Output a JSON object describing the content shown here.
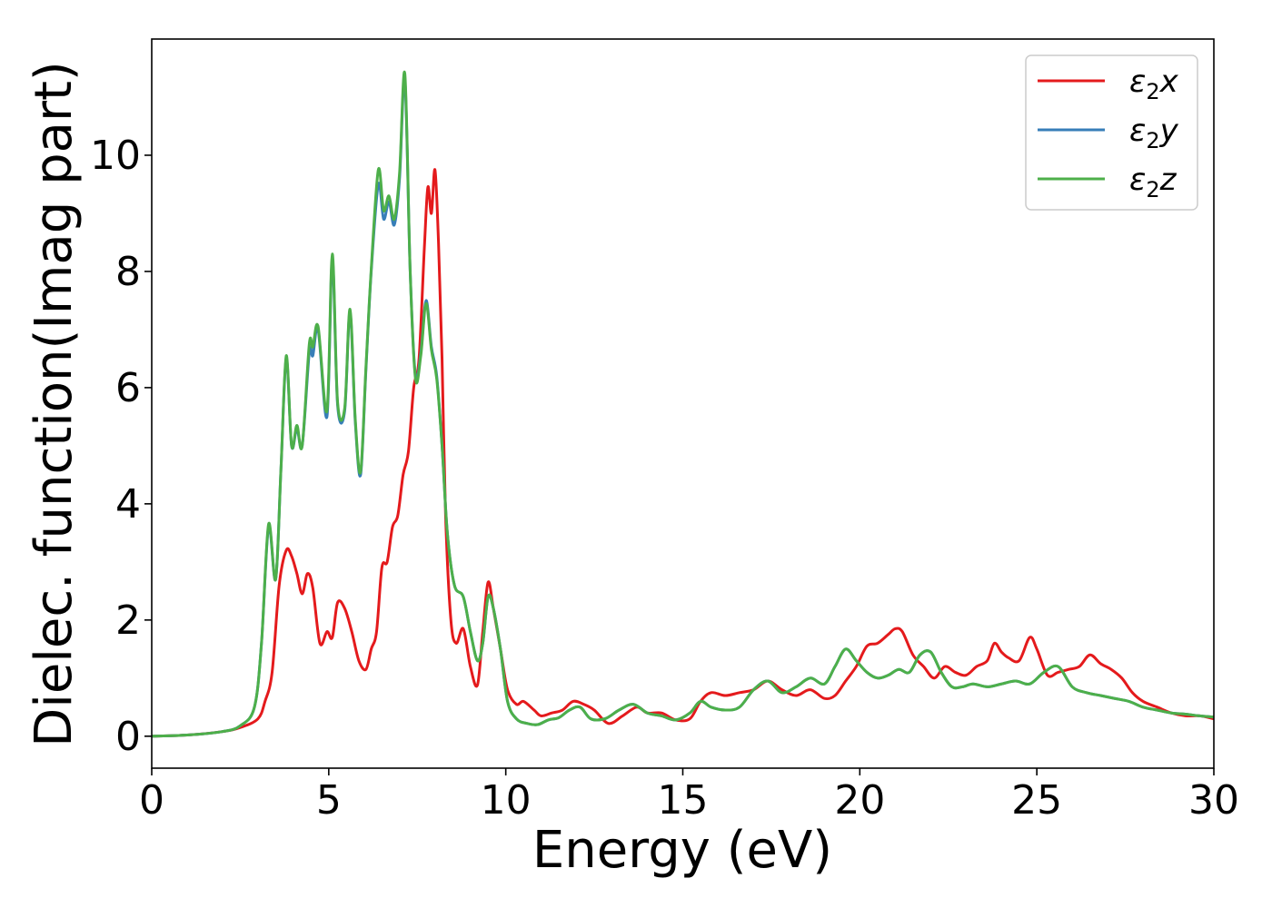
{
  "chart_data": {
    "type": "line",
    "title": "",
    "xlabel": "Energy (eV)",
    "ylabel": "Dielec. function(Imag part)",
    "xlim": [
      0,
      30
    ],
    "ylim": [
      -0.55,
      12.0
    ],
    "xticks": [
      0,
      5,
      10,
      15,
      20,
      25,
      30
    ],
    "yticks": [
      0,
      2,
      4,
      6,
      8,
      10
    ],
    "grid": false,
    "legend_position": "top-right",
    "series": [
      {
        "name": "ε₂x",
        "legend_base": "ε",
        "legend_sub": "2",
        "legend_tail": "x",
        "color": "#e41a1c",
        "x": [
          0,
          1,
          2,
          2.5,
          3,
          3.2,
          3.4,
          3.6,
          3.8,
          3.95,
          4.1,
          4.25,
          4.4,
          4.55,
          4.75,
          4.95,
          5.1,
          5.25,
          5.45,
          5.65,
          5.85,
          6.05,
          6.2,
          6.35,
          6.5,
          6.65,
          6.8,
          6.95,
          7.1,
          7.25,
          7.4,
          7.55,
          7.7,
          7.8,
          7.9,
          8.0,
          8.1,
          8.2,
          8.3,
          8.45,
          8.6,
          8.8,
          9.0,
          9.2,
          9.35,
          9.5,
          9.65,
          9.85,
          10.05,
          10.3,
          10.5,
          10.8,
          11.0,
          11.3,
          11.6,
          11.9,
          12.2,
          12.5,
          12.9,
          13.3,
          13.7,
          14.0,
          14.4,
          14.8,
          15.2,
          15.5,
          15.8,
          16.2,
          16.6,
          17.0,
          17.4,
          17.8,
          18.2,
          18.6,
          19.0,
          19.3,
          19.6,
          19.9,
          20.2,
          20.5,
          20.8,
          21.0,
          21.2,
          21.5,
          21.8,
          22.1,
          22.4,
          22.7,
          23.0,
          23.3,
          23.6,
          23.8,
          24.0,
          24.2,
          24.5,
          24.8,
          25.0,
          25.3,
          25.6,
          25.9,
          26.2,
          26.5,
          26.8,
          27.1,
          27.4,
          27.7,
          28.0,
          28.4,
          28.8,
          29.2,
          29.6,
          30.0
        ],
        "y": [
          0.0,
          0.02,
          0.08,
          0.15,
          0.3,
          0.6,
          1.1,
          2.6,
          3.2,
          3.1,
          2.8,
          2.45,
          2.8,
          2.55,
          1.6,
          1.8,
          1.7,
          2.3,
          2.2,
          1.8,
          1.3,
          1.15,
          1.5,
          1.8,
          2.9,
          3.0,
          3.6,
          3.8,
          4.5,
          4.9,
          6.0,
          6.5,
          8.4,
          9.45,
          9.0,
          9.75,
          8.5,
          6.5,
          3.8,
          2.0,
          1.6,
          1.85,
          1.2,
          0.88,
          1.8,
          2.65,
          2.2,
          1.5,
          0.8,
          0.55,
          0.6,
          0.45,
          0.35,
          0.4,
          0.45,
          0.6,
          0.55,
          0.45,
          0.22,
          0.35,
          0.5,
          0.4,
          0.4,
          0.28,
          0.3,
          0.6,
          0.75,
          0.7,
          0.75,
          0.8,
          0.95,
          0.8,
          0.7,
          0.8,
          0.65,
          0.7,
          0.95,
          1.2,
          1.55,
          1.6,
          1.75,
          1.85,
          1.8,
          1.4,
          1.2,
          1.0,
          1.2,
          1.1,
          1.05,
          1.2,
          1.3,
          1.6,
          1.45,
          1.35,
          1.3,
          1.7,
          1.5,
          1.05,
          1.1,
          1.15,
          1.2,
          1.4,
          1.25,
          1.15,
          1.0,
          0.75,
          0.6,
          0.5,
          0.4,
          0.35,
          0.35,
          0.3
        ]
      },
      {
        "name": "ε₂y",
        "legend_base": "ε",
        "legend_sub": "2",
        "legend_tail": "y",
        "color": "#377eb8",
        "x": [
          0,
          1,
          2,
          2.5,
          2.9,
          3.1,
          3.3,
          3.5,
          3.65,
          3.8,
          3.95,
          4.1,
          4.25,
          4.45,
          4.55,
          4.7,
          4.95,
          5.1,
          5.25,
          5.45,
          5.6,
          5.75,
          5.9,
          6.05,
          6.2,
          6.4,
          6.55,
          6.7,
          6.85,
          7.0,
          7.15,
          7.3,
          7.45,
          7.6,
          7.75,
          7.9,
          8.05,
          8.2,
          8.35,
          8.55,
          8.8,
          9.0,
          9.2,
          9.35,
          9.5,
          9.65,
          9.85,
          10.05,
          10.3,
          10.6,
          10.9,
          11.2,
          11.5,
          11.8,
          12.1,
          12.4,
          12.8,
          13.2,
          13.6,
          14.0,
          14.4,
          14.8,
          15.2,
          15.5,
          15.8,
          16.2,
          16.6,
          17.0,
          17.4,
          17.8,
          18.2,
          18.6,
          19.0,
          19.3,
          19.6,
          19.9,
          20.2,
          20.5,
          20.8,
          21.1,
          21.4,
          21.7,
          22.0,
          22.3,
          22.6,
          22.9,
          23.2,
          23.6,
          24.0,
          24.4,
          24.8,
          25.2,
          25.6,
          26.0,
          26.4,
          26.8,
          27.2,
          27.6,
          28.0,
          28.4,
          28.8,
          29.2,
          29.6,
          30.0
        ],
        "y": [
          0.0,
          0.02,
          0.08,
          0.18,
          0.5,
          1.6,
          3.6,
          2.7,
          4.6,
          6.5,
          5.0,
          5.3,
          5.0,
          6.6,
          6.55,
          7.0,
          5.5,
          8.2,
          5.7,
          5.6,
          7.3,
          5.4,
          4.5,
          6.3,
          8.0,
          9.5,
          8.9,
          9.2,
          8.8,
          9.6,
          11.3,
          8.0,
          6.2,
          6.6,
          7.5,
          6.7,
          6.2,
          5.0,
          3.5,
          2.6,
          2.4,
          1.8,
          1.3,
          1.6,
          2.4,
          2.2,
          1.5,
          0.6,
          0.3,
          0.22,
          0.2,
          0.28,
          0.32,
          0.45,
          0.5,
          0.3,
          0.3,
          0.45,
          0.55,
          0.4,
          0.35,
          0.28,
          0.4,
          0.6,
          0.5,
          0.45,
          0.5,
          0.8,
          0.95,
          0.75,
          0.85,
          1.0,
          0.9,
          1.2,
          1.5,
          1.3,
          1.1,
          1.0,
          1.05,
          1.15,
          1.1,
          1.4,
          1.45,
          1.1,
          0.85,
          0.85,
          0.9,
          0.85,
          0.9,
          0.95,
          0.9,
          1.1,
          1.2,
          0.85,
          0.75,
          0.7,
          0.65,
          0.6,
          0.5,
          0.45,
          0.4,
          0.38,
          0.35,
          0.33
        ]
      },
      {
        "name": "ε₂z",
        "legend_base": "ε",
        "legend_sub": "2",
        "legend_tail": "z",
        "color": "#4daf4a",
        "x": [
          0,
          1,
          2,
          2.5,
          2.9,
          3.1,
          3.3,
          3.5,
          3.65,
          3.8,
          3.95,
          4.1,
          4.25,
          4.45,
          4.55,
          4.7,
          4.95,
          5.1,
          5.25,
          5.45,
          5.6,
          5.75,
          5.9,
          6.05,
          6.2,
          6.4,
          6.55,
          6.7,
          6.85,
          7.0,
          7.15,
          7.3,
          7.45,
          7.6,
          7.75,
          7.9,
          8.05,
          8.2,
          8.35,
          8.55,
          8.8,
          9.0,
          9.2,
          9.35,
          9.5,
          9.65,
          9.85,
          10.05,
          10.3,
          10.6,
          10.9,
          11.2,
          11.5,
          11.8,
          12.1,
          12.4,
          12.8,
          13.2,
          13.6,
          14.0,
          14.4,
          14.8,
          15.2,
          15.5,
          15.8,
          16.2,
          16.6,
          17.0,
          17.4,
          17.8,
          18.2,
          18.6,
          19.0,
          19.3,
          19.6,
          19.9,
          20.2,
          20.5,
          20.8,
          21.1,
          21.4,
          21.7,
          22.0,
          22.3,
          22.6,
          22.9,
          23.2,
          23.6,
          24.0,
          24.4,
          24.8,
          25.2,
          25.6,
          26.0,
          26.4,
          26.8,
          27.2,
          27.6,
          28.0,
          28.4,
          28.8,
          29.2,
          29.6,
          30.0
        ],
        "y": [
          0.0,
          0.02,
          0.08,
          0.18,
          0.5,
          1.6,
          3.65,
          2.7,
          4.6,
          6.55,
          5.0,
          5.35,
          5.0,
          6.75,
          6.7,
          7.05,
          5.6,
          8.3,
          5.75,
          5.65,
          7.35,
          5.45,
          4.55,
          6.35,
          8.05,
          9.75,
          9.05,
          9.3,
          8.9,
          9.7,
          11.4,
          8.0,
          6.15,
          6.55,
          7.45,
          6.65,
          6.15,
          5.0,
          3.5,
          2.6,
          2.4,
          1.8,
          1.3,
          1.6,
          2.4,
          2.2,
          1.5,
          0.6,
          0.3,
          0.22,
          0.2,
          0.28,
          0.32,
          0.45,
          0.5,
          0.3,
          0.3,
          0.45,
          0.55,
          0.4,
          0.35,
          0.28,
          0.4,
          0.6,
          0.5,
          0.45,
          0.5,
          0.8,
          0.95,
          0.75,
          0.85,
          1.0,
          0.9,
          1.2,
          1.5,
          1.3,
          1.1,
          1.0,
          1.05,
          1.15,
          1.1,
          1.4,
          1.45,
          1.1,
          0.85,
          0.85,
          0.9,
          0.85,
          0.9,
          0.95,
          0.9,
          1.1,
          1.2,
          0.85,
          0.75,
          0.7,
          0.65,
          0.6,
          0.5,
          0.45,
          0.4,
          0.38,
          0.35,
          0.33
        ]
      }
    ]
  }
}
